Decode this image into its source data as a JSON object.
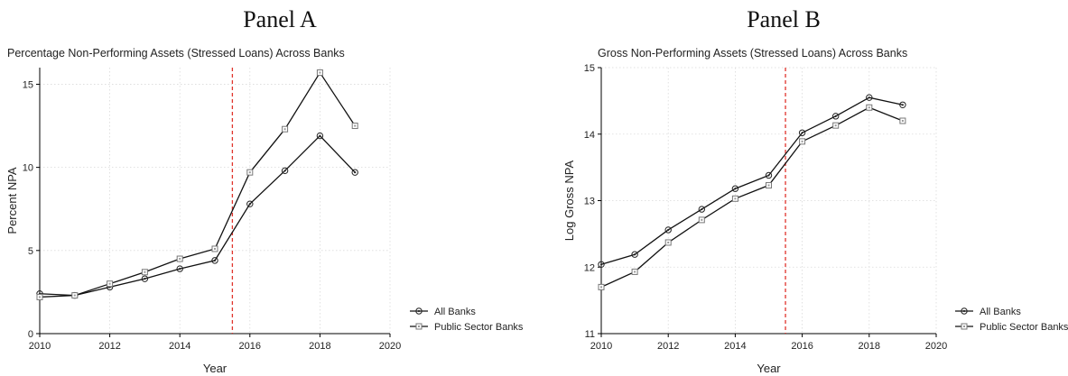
{
  "chart_data": [
    {
      "type": "line",
      "panel_label": "Panel A",
      "title": "Percentage Non-Performing Assets (Stressed Loans) Across Banks",
      "xlabel": "Year",
      "ylabel": "Percent NPA",
      "xlim": [
        2010,
        2020
      ],
      "ylim": [
        0,
        16
      ],
      "xticks": [
        2010,
        2012,
        2014,
        2016,
        2018,
        2020
      ],
      "yticks": [
        0,
        5,
        10,
        15
      ],
      "grid": true,
      "vline": 2015.5,
      "vline_color": "#e0342c",
      "legend_position": "bottom-right",
      "x": [
        2010,
        2011,
        2012,
        2013,
        2014,
        2015,
        2016,
        2017,
        2018,
        2019
      ],
      "series": [
        {
          "name": "All Banks",
          "marker": "circle",
          "values": [
            2.4,
            2.3,
            2.8,
            3.3,
            3.9,
            4.4,
            7.8,
            9.8,
            11.9,
            9.7
          ]
        },
        {
          "name": "Public Sector Banks",
          "marker": "square",
          "values": [
            2.2,
            2.3,
            3.0,
            3.7,
            4.5,
            5.1,
            9.7,
            12.3,
            15.7,
            12.5
          ]
        }
      ]
    },
    {
      "type": "line",
      "panel_label": "Panel B",
      "title": "Gross Non-Performing Assets (Stressed Loans) Across Banks",
      "xlabel": "Year",
      "ylabel": "Log Gross NPA",
      "xlim": [
        2010,
        2020
      ],
      "ylim": [
        11,
        15
      ],
      "xticks": [
        2010,
        2012,
        2014,
        2016,
        2018,
        2020
      ],
      "yticks": [
        11,
        12,
        13,
        14,
        15
      ],
      "grid": true,
      "vline": 2015.5,
      "vline_color": "#e0342c",
      "legend_position": "bottom-right",
      "x": [
        2010,
        2011,
        2012,
        2013,
        2014,
        2015,
        2016,
        2017,
        2018,
        2019
      ],
      "series": [
        {
          "name": "All Banks",
          "marker": "circle",
          "values": [
            12.04,
            12.19,
            12.56,
            12.87,
            13.18,
            13.38,
            14.02,
            14.27,
            14.55,
            14.44
          ]
        },
        {
          "name": "Public Sector Banks",
          "marker": "square",
          "values": [
            11.7,
            11.93,
            12.37,
            12.71,
            13.03,
            13.23,
            13.89,
            14.13,
            14.4,
            14.2
          ]
        }
      ]
    }
  ]
}
